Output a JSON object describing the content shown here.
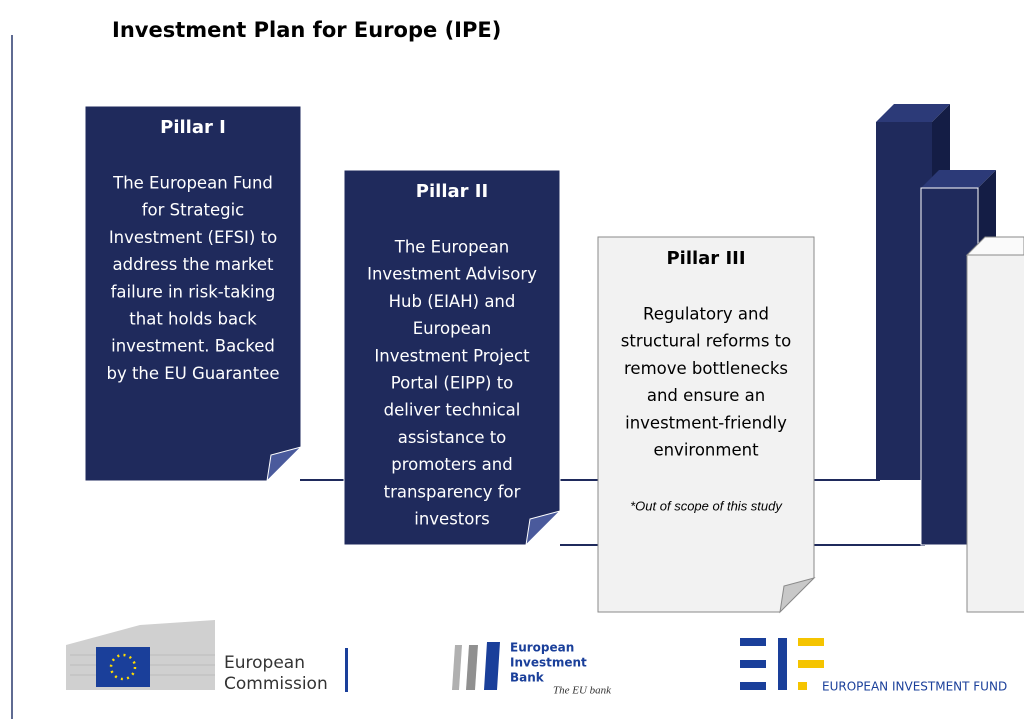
{
  "title": "Investment Plan for Europe (IPE)",
  "pillars": [
    {
      "heading": "Pillar I",
      "lines": [
        "The European Fund",
        "for Strategic",
        "Investment (EFSI) to",
        "address the market",
        "failure in risk-taking",
        "that holds back",
        "investment. Backed",
        "by the EU Guarantee"
      ]
    },
    {
      "heading": "Pillar II",
      "lines": [
        "The European",
        "Investment Advisory",
        "Hub (EIAH) and",
        "European",
        "Investment Project",
        "Portal (EIPP) to",
        "deliver technical",
        "assistance to",
        "promoters and",
        "transparency for",
        "investors"
      ]
    },
    {
      "heading": "Pillar III",
      "lines": [
        "Regulatory and",
        "structural reforms to",
        "remove bottlenecks",
        "and ensure an",
        "investment-friendly",
        "environment"
      ],
      "note": "*Out of scope of this study"
    }
  ],
  "logos": {
    "commission": [
      "European",
      "Commission"
    ],
    "eib": [
      "European",
      "Investment",
      "Bank"
    ],
    "eib_tagline": "The EU bank",
    "eif": "EUROPEAN INVESTMENT FUND"
  }
}
